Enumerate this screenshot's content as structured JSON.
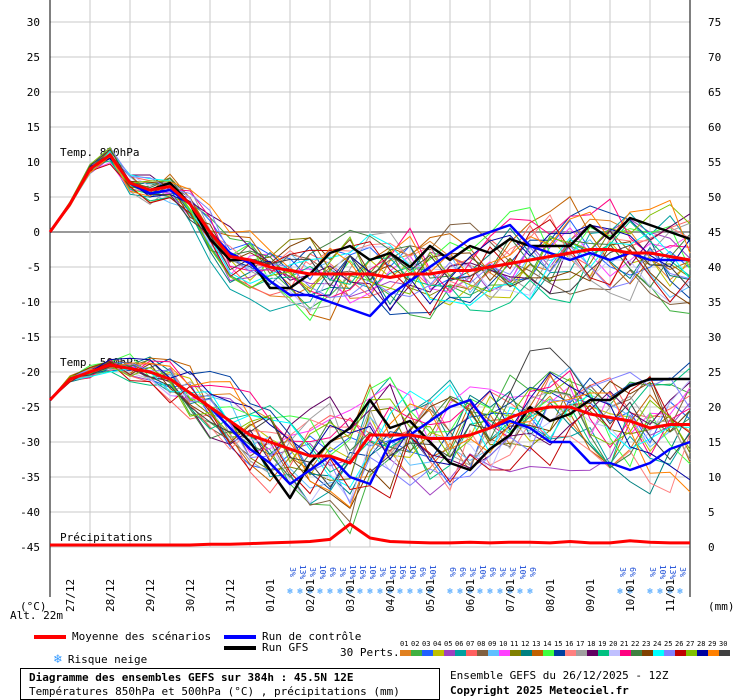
{
  "chart_data": {
    "type": "line",
    "title": "Diagramme des ensembles GEFS sur 384h : 45.5N 12E",
    "subtitle": "Températures 850hPa et 500hPa (°C) , précipitations (mm)",
    "left_axis": {
      "unit": "(°C)",
      "ticks": [
        30,
        25,
        20,
        15,
        10,
        5,
        0,
        -5,
        -10,
        -15,
        -20,
        -25,
        -30,
        -35,
        -40,
        -45
      ],
      "ylim": [
        -45,
        30
      ]
    },
    "right_axis": {
      "unit": "(mm)",
      "ticks": [
        75,
        70,
        65,
        60,
        55,
        50,
        45,
        40,
        35,
        30,
        25,
        20,
        15,
        10,
        5,
        0
      ],
      "ylim": [
        0,
        75
      ]
    },
    "x_labels": [
      "27/12",
      "28/12",
      "29/12",
      "30/12",
      "31/12",
      "01/01",
      "02/01",
      "03/01",
      "04/01",
      "05/01",
      "06/01",
      "07/01",
      "08/01",
      "09/01",
      "10/01",
      "11/01"
    ],
    "x_hours": [
      0,
      384
    ],
    "panel_labels": {
      "t850": "Temp. 850hPa",
      "t500": "Temp. 500hPa",
      "precip": "Précipitations"
    },
    "altitude": "Alt. 22m",
    "legend": {
      "mean": {
        "label": "Moyenne des scénarios",
        "color": "#ff0000"
      },
      "control": {
        "label": "Run de contrôle",
        "color": "#0000ff"
      },
      "gfs": {
        "label": "Run GFS",
        "color": "#000000"
      },
      "snow": {
        "label": "Risque neige",
        "color": "#3399ff"
      },
      "perts_label": "30 Perts."
    },
    "series_t850": {
      "x": [
        0,
        12,
        24,
        36,
        48,
        60,
        72,
        84,
        96,
        108,
        120,
        132,
        144,
        156,
        168,
        180,
        192,
        204,
        216,
        228,
        240,
        252,
        264,
        276,
        288,
        300,
        312,
        324,
        336,
        348,
        360,
        372,
        384
      ],
      "mean": [
        0,
        4,
        9,
        11,
        7,
        6,
        6.5,
        4,
        0,
        -3.5,
        -4,
        -5,
        -5.5,
        -6,
        -6,
        -6,
        -6,
        -6.5,
        -6,
        -6,
        -5.5,
        -5.5,
        -5,
        -4.5,
        -4,
        -3.5,
        -3,
        -2.5,
        -2.5,
        -3,
        -3,
        -3.5,
        -4
      ],
      "control": [
        0,
        4,
        9,
        11,
        7,
        5.5,
        6,
        4,
        0,
        -3,
        -4.5,
        -7,
        -9,
        -9,
        -10,
        -11,
        -12,
        -9,
        -7,
        -5,
        -3,
        -1,
        0,
        1,
        -2,
        -3,
        -4,
        -3,
        -4,
        -3,
        -4,
        -4,
        -4
      ],
      "gfs": [
        0,
        4,
        9,
        11,
        7,
        6,
        7,
        4,
        -1,
        -4,
        -4,
        -8,
        -8,
        -6,
        -3,
        -2,
        -4,
        -3,
        -5,
        -2,
        -4,
        -2,
        -3,
        -1,
        -2,
        -2,
        -2,
        1,
        -1,
        2,
        1,
        0,
        -1
      ]
    },
    "series_t500": {
      "x": [
        0,
        12,
        24,
        36,
        48,
        60,
        72,
        84,
        96,
        108,
        120,
        132,
        144,
        156,
        168,
        180,
        192,
        204,
        216,
        228,
        240,
        252,
        264,
        276,
        288,
        300,
        312,
        324,
        336,
        348,
        360,
        372,
        384
      ],
      "mean": [
        -24,
        -21,
        -20,
        -19,
        -19.5,
        -20,
        -21,
        -23,
        -25,
        -27,
        -29,
        -30,
        -31,
        -32,
        -32,
        -33,
        -29,
        -29,
        -29,
        -29.5,
        -29.5,
        -29,
        -28,
        -26.5,
        -25.5,
        -25,
        -25,
        -26,
        -26.5,
        -27,
        -28,
        -27.5,
        -27.5
      ],
      "control": [
        -24,
        -21,
        -20,
        -19,
        -19.5,
        -20,
        -21,
        -23,
        -25,
        -28,
        -31,
        -33,
        -36,
        -34,
        -32,
        -35,
        -36,
        -30,
        -29,
        -27,
        -25,
        -24,
        -28,
        -27,
        -28,
        -30,
        -30,
        -33,
        -33,
        -34,
        -33,
        -31,
        -30
      ],
      "gfs": [
        -24,
        -21,
        -20,
        -19,
        -19.5,
        -20,
        -21,
        -23,
        -25,
        -27,
        -30,
        -34,
        -38,
        -33,
        -30,
        -28,
        -24,
        -28,
        -27,
        -30,
        -33,
        -34,
        -31,
        -29,
        -25,
        -27,
        -26,
        -24,
        -24,
        -22,
        -21,
        -21,
        -21
      ]
    },
    "series_precip": {
      "x": [
        0,
        12,
        24,
        36,
        48,
        60,
        72,
        84,
        96,
        108,
        120,
        132,
        144,
        156,
        168,
        180,
        192,
        204,
        216,
        228,
        240,
        252,
        264,
        276,
        288,
        300,
        312,
        324,
        336,
        348,
        360,
        372,
        384
      ],
      "mean": [
        0,
        0,
        0,
        0,
        0,
        0,
        0,
        0,
        0.1,
        0.1,
        0.2,
        0.3,
        0.4,
        0.5,
        0.8,
        3,
        1,
        0.5,
        0.4,
        0.3,
        0.3,
        0.4,
        0.3,
        0.4,
        0.4,
        0.3,
        0.5,
        0.3,
        0.3,
        0.6,
        0.4,
        0.3,
        0.3
      ]
    },
    "snow_risk_hours": [
      144,
      150,
      156,
      162,
      168,
      174,
      180,
      186,
      192,
      198,
      204,
      210,
      216,
      222,
      228,
      240,
      246,
      252,
      258,
      264,
      270,
      276,
      282,
      288,
      342,
      348,
      360,
      366,
      372,
      378
    ],
    "snow_risk_labels": [
      "3%",
      "13%",
      "3%",
      "10%",
      "6%",
      "3%",
      "10%",
      "16%",
      "10%",
      "3%",
      "10%",
      "16%",
      "10%",
      "6%",
      "10%",
      "6%",
      "6%",
      "3%",
      "10%",
      "6%",
      "3%",
      "3%",
      "10%",
      "6%",
      "3%",
      "6%",
      "3%",
      "10%",
      "13%",
      "3%"
    ],
    "pert_numbers": [
      "01",
      "02",
      "03",
      "04",
      "05",
      "06",
      "07",
      "08",
      "09",
      "10",
      "11",
      "12",
      "13",
      "14",
      "15",
      "16",
      "17",
      "18",
      "19",
      "20",
      "21",
      "22",
      "23",
      "24",
      "25",
      "26",
      "27",
      "28",
      "29",
      "30"
    ],
    "pert_colors": [
      "#e08020",
      "#40b040",
      "#2060ff",
      "#c0c000",
      "#a040c0",
      "#00a0a0",
      "#ff6060",
      "#806040",
      "#60c0ff",
      "#ff40ff",
      "#808000",
      "#008080",
      "#c06000",
      "#40ff40",
      "#0040a0",
      "#ff8080",
      "#a0a0a0",
      "#600060",
      "#00c080",
      "#c0c0ff",
      "#ff0080",
      "#408040",
      "#804000",
      "#00ffff",
      "#8080ff",
      "#c00000",
      "#80c000",
      "#0000a0",
      "#ff8000",
      "#404040"
    ]
  },
  "footer": {
    "run_info": "Ensemble GEFS du 26/12/2025 - 12Z",
    "copyright": "Copyright 2025 Meteociel.fr"
  }
}
